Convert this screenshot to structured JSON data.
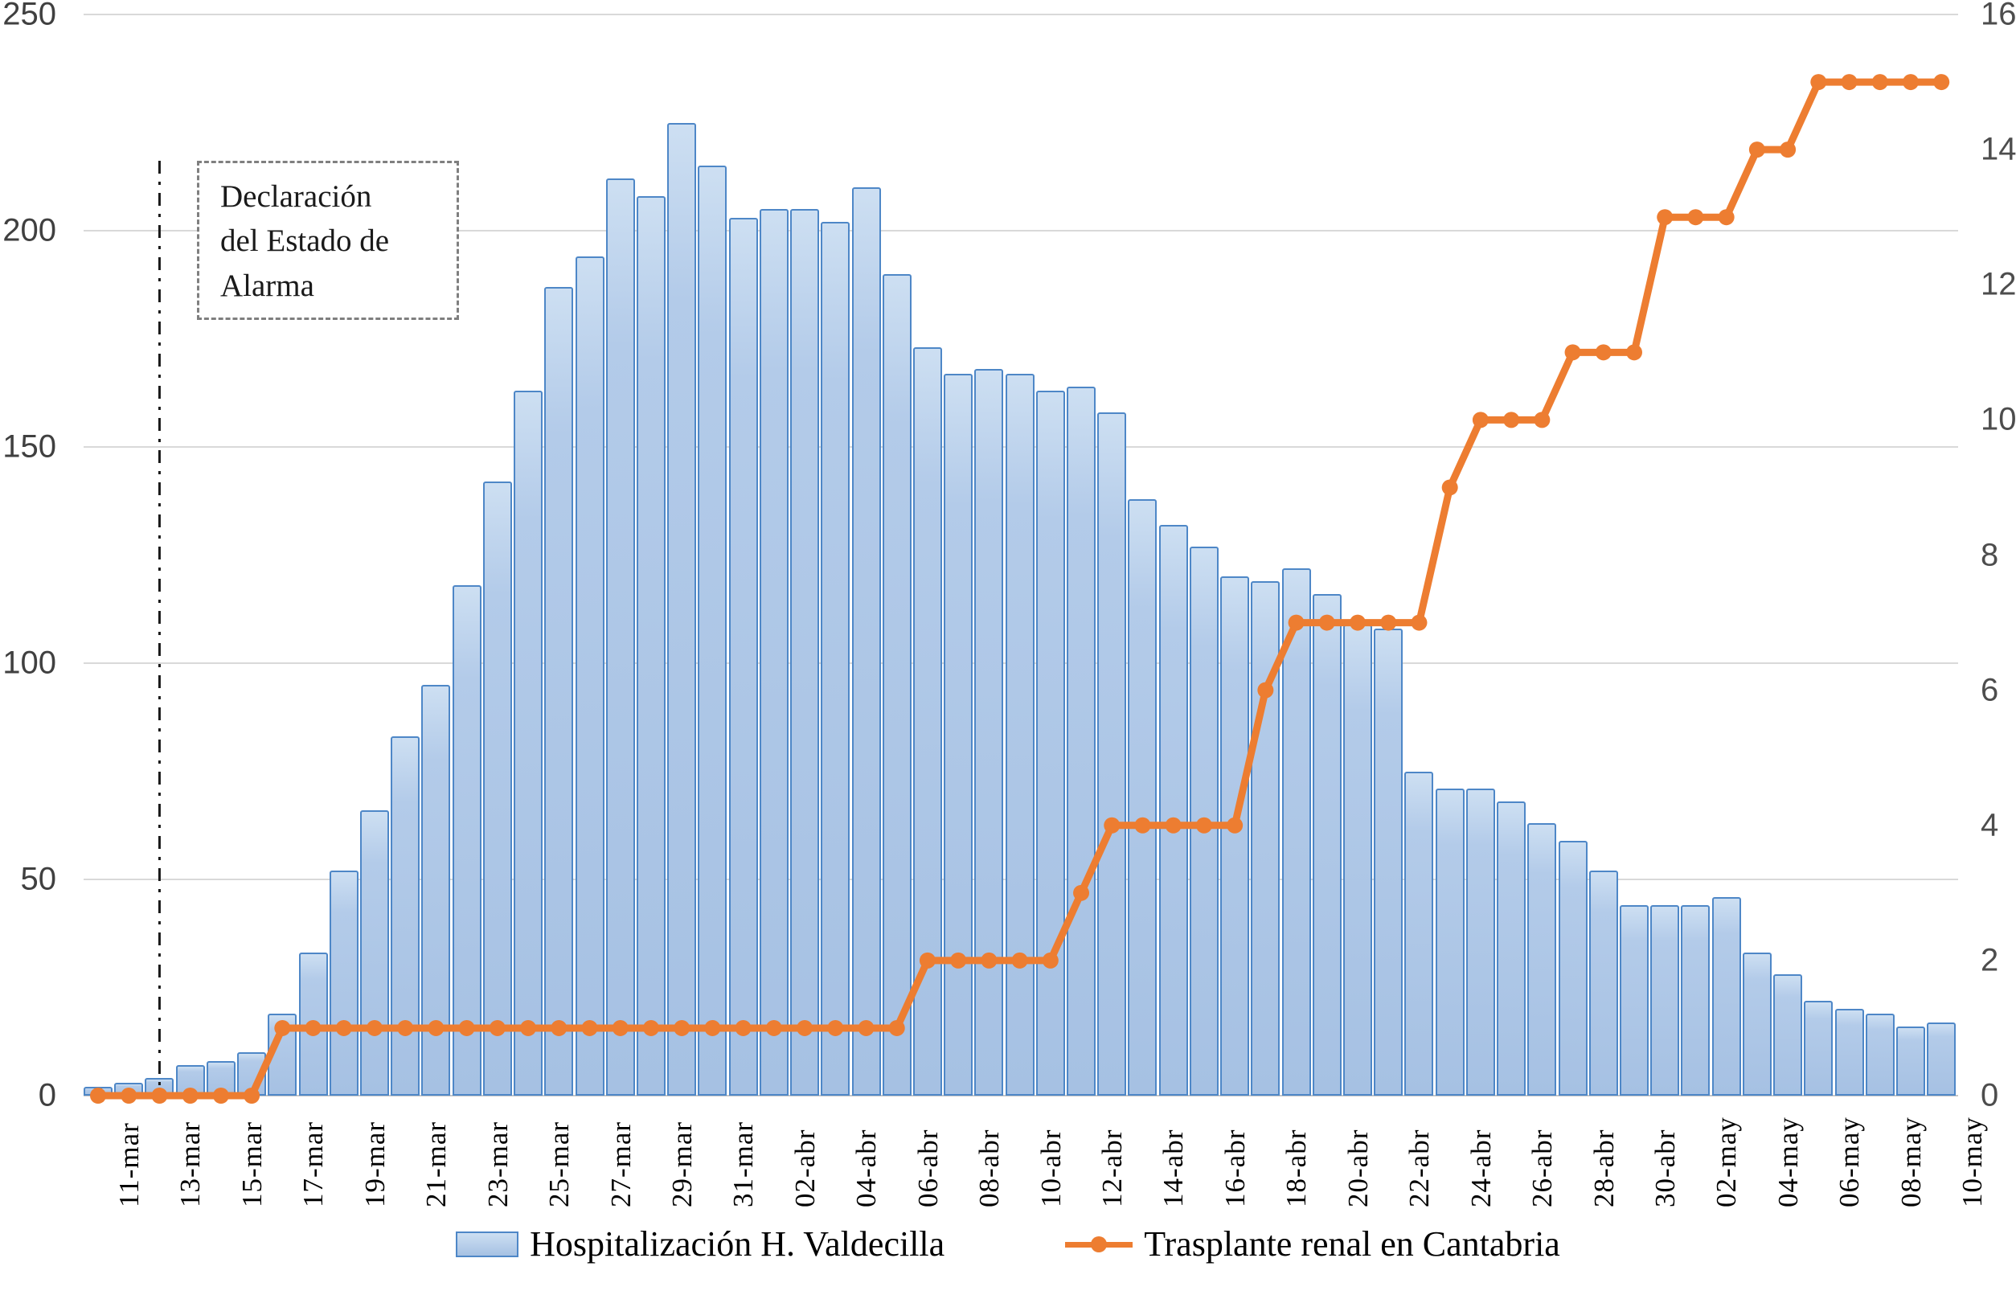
{
  "chart_data": {
    "type": "combo-bar-line",
    "categories": [
      "11-mar",
      "12-mar",
      "13-mar",
      "14-mar",
      "15-mar",
      "16-mar",
      "17-mar",
      "18-mar",
      "19-mar",
      "20-mar",
      "21-mar",
      "22-mar",
      "23-mar",
      "24-mar",
      "25-mar",
      "26-mar",
      "27-mar",
      "28-mar",
      "29-mar",
      "30-mar",
      "31-mar",
      "01-abr",
      "02-abr",
      "03-abr",
      "04-abr",
      "05-abr",
      "06-abr",
      "07-abr",
      "08-abr",
      "09-abr",
      "10-abr",
      "11-abr",
      "12-abr",
      "13-abr",
      "14-abr",
      "15-abr",
      "16-abr",
      "17-abr",
      "18-abr",
      "19-abr",
      "20-abr",
      "21-abr",
      "22-abr",
      "23-abr",
      "24-abr",
      "25-abr",
      "26-abr",
      "27-abr",
      "28-abr",
      "29-abr",
      "30-abr",
      "01-may",
      "02-may",
      "03-may",
      "04-may",
      "05-may",
      "06-may",
      "07-may",
      "08-may",
      "09-may",
      "10-may"
    ],
    "x_tick_labels": [
      "11-mar",
      "13-mar",
      "15-mar",
      "17-mar",
      "19-mar",
      "21-mar",
      "23-mar",
      "25-mar",
      "27-mar",
      "29-mar",
      "31-mar",
      "02-abr",
      "04-abr",
      "06-abr",
      "08-abr",
      "10-abr",
      "12-abr",
      "14-abr",
      "16-abr",
      "18-abr",
      "20-abr",
      "22-abr",
      "24-abr",
      "26-abr",
      "28-abr",
      "30-abr",
      "02-may",
      "04-may",
      "06-may",
      "08-may",
      "10-may"
    ],
    "series": [
      {
        "name": "Hospitalización H. Valdecilla",
        "type": "bar",
        "axis": "left",
        "values": [
          2,
          3,
          4,
          7,
          8,
          10,
          19,
          33,
          52,
          66,
          83,
          95,
          118,
          142,
          163,
          187,
          194,
          212,
          208,
          225,
          215,
          203,
          205,
          205,
          202,
          210,
          190,
          173,
          167,
          168,
          167,
          163,
          164,
          158,
          138,
          132,
          127,
          120,
          119,
          122,
          116,
          109,
          108,
          75,
          71,
          71,
          68,
          63,
          59,
          52,
          44,
          44,
          44,
          46,
          33,
          28,
          22,
          20,
          19,
          16,
          17
        ]
      },
      {
        "name": "Trasplante renal en Cantabria",
        "type": "line",
        "axis": "right",
        "values": [
          0,
          0,
          0,
          0,
          0,
          0,
          1,
          1,
          1,
          1,
          1,
          1,
          1,
          1,
          1,
          1,
          1,
          1,
          1,
          1,
          1,
          1,
          1,
          1,
          1,
          1,
          1,
          2,
          2,
          2,
          2,
          2,
          3,
          4,
          4,
          4,
          4,
          4,
          6,
          7,
          7,
          7,
          7,
          7,
          9,
          10,
          10,
          10,
          11,
          11,
          11,
          13,
          13,
          13,
          14,
          14,
          15,
          15,
          15,
          15,
          15
        ]
      }
    ],
    "left_axis": {
      "ticks": [
        0,
        50,
        100,
        150,
        200,
        250
      ],
      "min": 0,
      "max": 250
    },
    "right_axis": {
      "ticks": [
        0,
        2,
        4,
        6,
        8,
        10,
        12,
        14,
        16
      ],
      "min": 0,
      "max": 16
    },
    "grid": "horizontal",
    "legend_position": "bottom",
    "annotation": {
      "lines": [
        "Declaración",
        "del Estado de",
        "Alarma"
      ],
      "marker_date": "13-mar"
    },
    "colors": {
      "bar_fill": "#b3cbe9",
      "bar_border": "#4e87c7",
      "line": "#ed7d31",
      "grid": "#d9d9d9",
      "axis_text": "#404040",
      "text": "#000000"
    }
  }
}
